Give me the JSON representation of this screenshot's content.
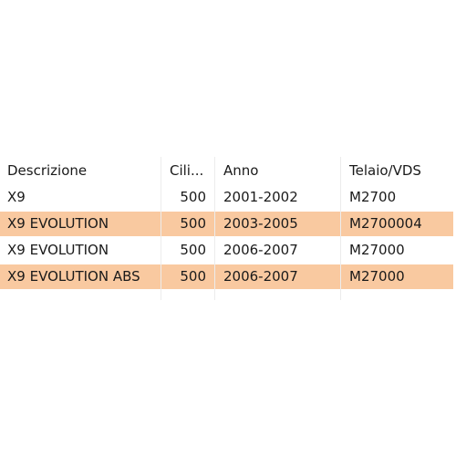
{
  "table": {
    "columns": [
      "Descrizione",
      "Cili...",
      "Anno",
      "Telaio/VDS"
    ],
    "rows": [
      {
        "descrizione": "X9",
        "cilindrata": "500",
        "anno": "2001-2002",
        "telaio": "M2700"
      },
      {
        "descrizione": "X9 EVOLUTION",
        "cilindrata": "500",
        "anno": "2003-2005",
        "telaio": "M2700004"
      },
      {
        "descrizione": "X9 EVOLUTION",
        "cilindrata": "500",
        "anno": "2006-2007",
        "telaio": "M27000"
      },
      {
        "descrizione": "X9 EVOLUTION ABS",
        "cilindrata": "500",
        "anno": "2006-2007",
        "telaio": "M27000"
      }
    ],
    "stripe_color": "#f9c9a0"
  }
}
